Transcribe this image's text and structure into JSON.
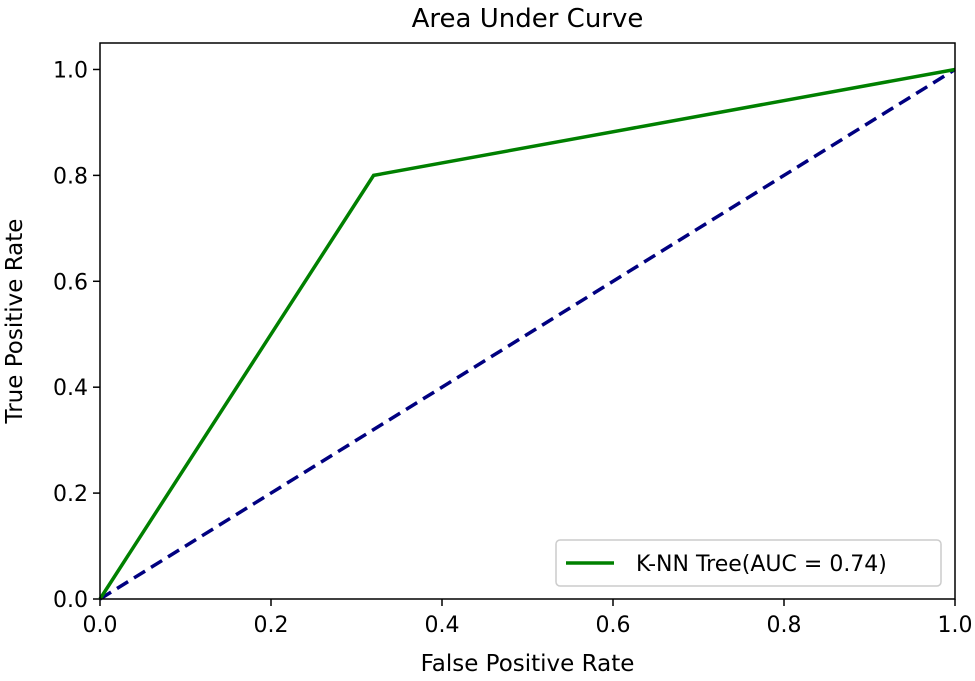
{
  "chart_data": {
    "type": "line",
    "title": "Area Under Curve",
    "xlabel": "False Positive Rate",
    "ylabel": "True Positive Rate",
    "xlim": [
      0.0,
      1.0
    ],
    "ylim": [
      0.0,
      1.05
    ],
    "xticks": [
      0.0,
      0.2,
      0.4,
      0.6,
      0.8,
      1.0
    ],
    "xtick_labels": [
      "0.0",
      "0.2",
      "0.4",
      "0.6",
      "0.8",
      "1.0"
    ],
    "yticks": [
      0.0,
      0.2,
      0.4,
      0.6,
      0.8,
      1.0
    ],
    "ytick_labels": [
      "0.0",
      "0.2",
      "0.4",
      "0.6",
      "0.8",
      "1.0"
    ],
    "grid": false,
    "legend_position": "lower-right",
    "series": [
      {
        "name": "K-NN Tree(AUC = 0.74)",
        "x": [
          0.0,
          0.32,
          1.0
        ],
        "y": [
          0.0,
          0.8,
          1.0
        ],
        "color": "#008000",
        "style": "solid",
        "in_legend": true
      },
      {
        "x": [
          0.0,
          1.0
        ],
        "y": [
          0.0,
          1.0
        ],
        "color": "#000080",
        "style": "dashed",
        "in_legend": false
      }
    ]
  }
}
